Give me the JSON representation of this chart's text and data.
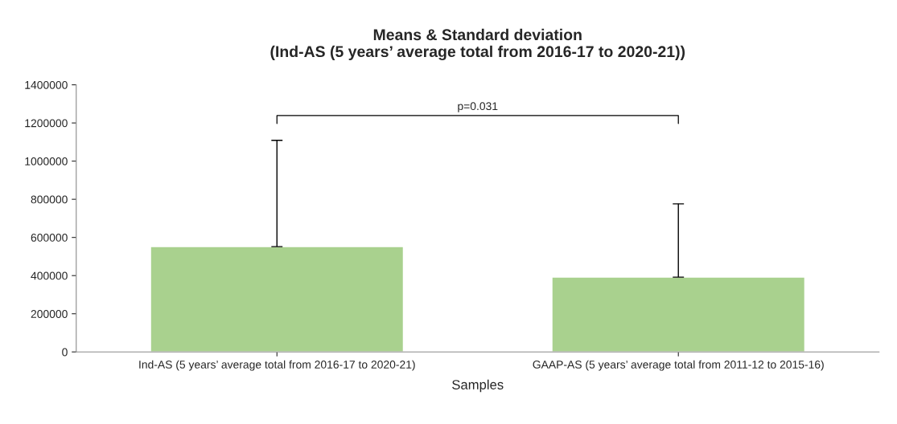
{
  "chart_data": {
    "type": "bar",
    "title": "Means & Standard deviation\n(Ind-AS (5 years’ average total from 2016-17 to 2020-21))",
    "xlabel": "Samples",
    "categories": [
      "Ind-AS (5 years’ average total from 2016-17 to 2020-21)",
      "GAAP-AS (5 years’ average total from 2011-12 to 2015-16)"
    ],
    "values": [
      552000,
      392000
    ],
    "errors": [
      [
        552000,
        1109000
      ],
      [
        392000,
        776000
      ]
    ],
    "color": "#a9d18e",
    "ylim": [
      0,
      1400000
    ],
    "yticks": [
      0,
      200000,
      400000,
      600000,
      800000,
      1000000,
      1200000,
      1400000
    ],
    "annotations": [
      "p=0.031"
    ],
    "grid": false,
    "legend": false
  }
}
